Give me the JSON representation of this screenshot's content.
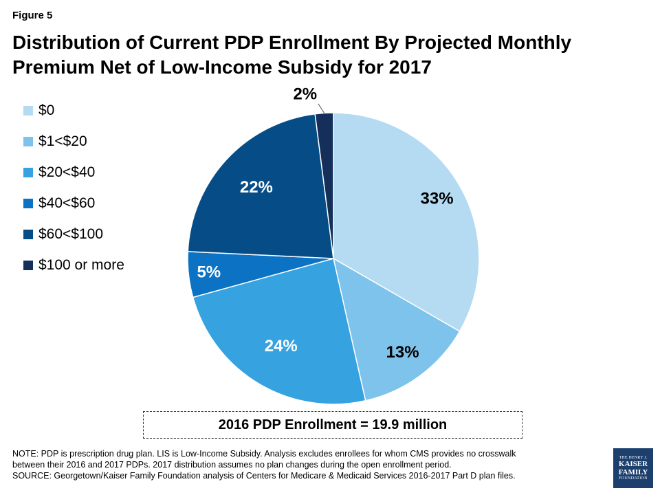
{
  "figure_label": "Figure 5",
  "title": "Distribution of Current PDP Enrollment By Projected Monthly Premium Net of Low-Income Subsidy for 2017",
  "total_box": "2016 PDP Enrollment = 19.9 million",
  "note_lines": [
    "NOTE: PDP is prescription drug plan. LIS is Low-Income Subsidy. Analysis excludes enrollees for whom CMS provides no crosswalk",
    "between their 2016 and 2017 PDPs. 2017 distribution assumes no plan changes during the open enrollment period.",
    "SOURCE: Georgetown/Kaiser Family Foundation analysis of Centers for Medicare & Medicaid Services 2016-2017 Part D plan files."
  ],
  "logo": {
    "line1": "THE HENRY J.",
    "line2": "KAISER",
    "line3": "FAMILY",
    "line4": "FOUNDATION"
  },
  "chart_data": {
    "type": "pie",
    "legend_position": "left",
    "categories": [
      "$0",
      "$1<$20",
      "$20<$40",
      "$40<$60",
      "$60<$100",
      "$100 or more"
    ],
    "values": [
      33,
      13,
      24,
      5,
      22,
      2
    ],
    "labels": [
      "33%",
      "13%",
      "24%",
      "5%",
      "22%",
      "2%"
    ],
    "colors": [
      "#b4dbf2",
      "#7ec3ec",
      "#36a2e0",
      "#0b72c4",
      "#064d87",
      "#14305a"
    ]
  }
}
